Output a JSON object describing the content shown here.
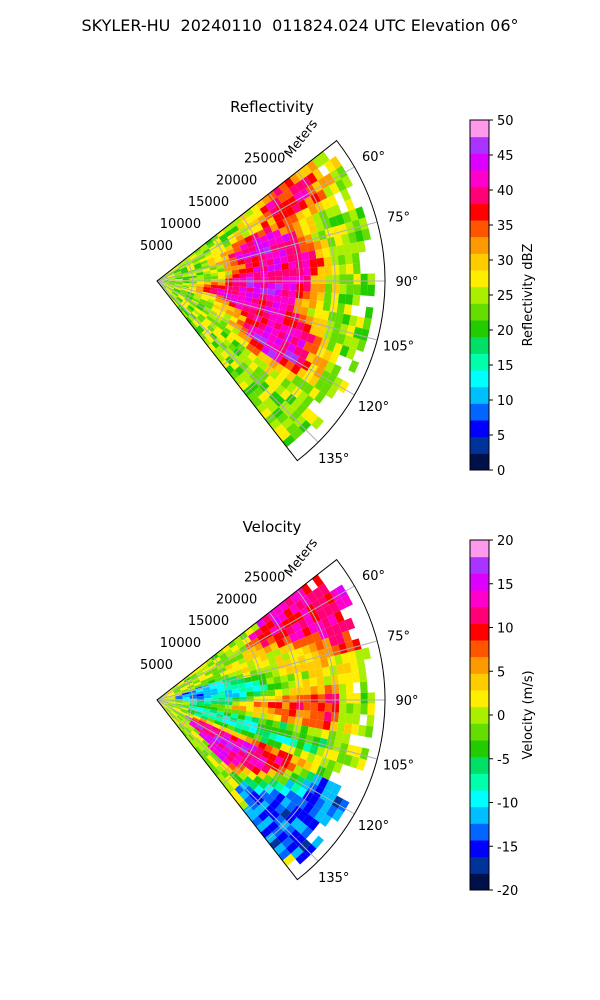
{
  "figure_title": "SKYLER-HU  20240110  011824.024 UTC Elevation 06°",
  "chart_data": [
    {
      "type": "heatmap",
      "title": "Reflectivity",
      "range_label": "Meters",
      "range_ticks": [
        5000,
        10000,
        15000,
        20000,
        25000
      ],
      "rlim": [
        0,
        32000
      ],
      "azimuth_ticks": [
        "60°",
        "75°",
        "90°",
        "105°",
        "120°",
        "135°"
      ],
      "azimuth_range_deg": [
        52,
        142
      ],
      "grid": true,
      "colorbar": {
        "label": "Reflectivity dBZ",
        "min": 0,
        "max": 50,
        "ticks": [
          0,
          5,
          10,
          15,
          20,
          25,
          30,
          35,
          40,
          45,
          50
        ],
        "colors": [
          "#00104a",
          "#003399",
          "#0000ff",
          "#0066ff",
          "#00bfff",
          "#00ffff",
          "#00ffaa",
          "#00e066",
          "#22cc00",
          "#66dd00",
          "#aaee00",
          "#ffee00",
          "#ffcc00",
          "#ff9900",
          "#ff5500",
          "#ff0000",
          "#ff0077",
          "#ff00cc",
          "#dd00ff",
          "#aa33ff",
          "#ff99ee"
        ]
      },
      "cells": [
        {
          "az": 58,
          "r": 22000,
          "dbz": 38
        },
        {
          "az": 72,
          "r": 15000,
          "dbz": 42
        },
        {
          "az": 82,
          "r": 18000,
          "dbz": 40
        },
        {
          "az": 92,
          "r": 16000,
          "dbz": 44
        },
        {
          "az": 100,
          "r": 12000,
          "dbz": 41
        },
        {
          "az": 108,
          "r": 18000,
          "dbz": 39
        },
        {
          "az": 118,
          "r": 19000,
          "dbz": 43
        }
      ]
    },
    {
      "type": "heatmap",
      "title": "Velocity",
      "range_label": "Meters",
      "range_ticks": [
        5000,
        10000,
        15000,
        20000,
        25000
      ],
      "rlim": [
        0,
        32000
      ],
      "azimuth_ticks": [
        "60°",
        "75°",
        "90°",
        "105°",
        "120°",
        "135°"
      ],
      "azimuth_range_deg": [
        52,
        142
      ],
      "grid": true,
      "colorbar": {
        "label": "Velocity (m/s)",
        "min": -20,
        "max": 20,
        "ticks": [
          -20,
          -15,
          -10,
          -5,
          0,
          5,
          10,
          15,
          20
        ],
        "colors": [
          "#00104a",
          "#003399",
          "#0000ff",
          "#0066ff",
          "#00bfff",
          "#00ffff",
          "#00ffaa",
          "#00e066",
          "#22cc00",
          "#66dd00",
          "#aaee00",
          "#ffee00",
          "#ffcc00",
          "#ff9900",
          "#ff5500",
          "#ff0000",
          "#ff0077",
          "#ff00cc",
          "#dd00ff",
          "#aa33ff",
          "#ff99ee"
        ]
      },
      "cells": [
        {
          "az": 62,
          "r": 25000,
          "vel": 12
        },
        {
          "az": 75,
          "r": 18000,
          "vel": 2
        },
        {
          "az": 85,
          "r": 12000,
          "vel": -12
        },
        {
          "az": 93,
          "r": 16000,
          "vel": 10
        },
        {
          "az": 105,
          "r": 14000,
          "vel": -8
        },
        {
          "az": 120,
          "r": 15000,
          "vel": 14
        },
        {
          "az": 128,
          "r": 24000,
          "vel": -14
        }
      ]
    }
  ]
}
